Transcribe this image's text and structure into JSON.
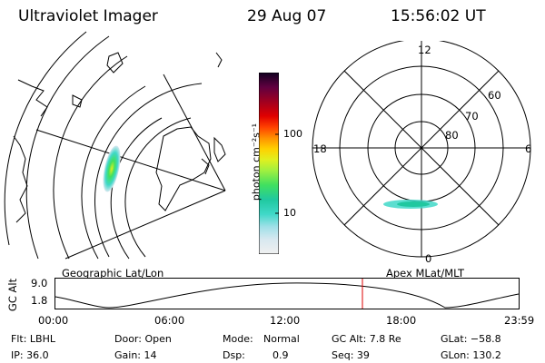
{
  "header": {
    "title": "Ultraviolet Imager",
    "date": "29 Aug 07",
    "time": "15:56:02 UT"
  },
  "colorbar": {
    "unit_label": "photon cm⁻²s⁻¹",
    "tick_100": "100",
    "tick_10": "10",
    "colors": [
      "#f0f0f0",
      "#d8e8f0",
      "#a0e0e8",
      "#40d8c8",
      "#20c8a0",
      "#40e060",
      "#a0f040",
      "#e0f020",
      "#ffd000",
      "#ff9000",
      "#ff4000",
      "#e00000",
      "#a00020",
      "#600040",
      "#300040",
      "#100020"
    ]
  },
  "geo_panel": {
    "label": "Geographic Lat/Lon"
  },
  "polar_panel": {
    "label": "Apex MLat/MLT",
    "mlt_labels": {
      "top": "12",
      "left": "18",
      "right": "6",
      "bottom": "0"
    },
    "lat_labels": [
      "60",
      "70",
      "80"
    ]
  },
  "altitude_plot": {
    "ylabel": "GC Alt",
    "ytick_top": "9.0",
    "ytick_bottom": "1.8",
    "xticks": [
      "00:00",
      "06:00",
      "12:00",
      "18:00",
      "23:59"
    ],
    "marker_color": "#dd0000"
  },
  "info": {
    "flt": "Flt: LBHL",
    "ip": "IP: 36.0",
    "door": "Door: Open",
    "gain": "Gain: 14",
    "mode_label": "Mode:",
    "mode_value": "Normal",
    "dsp_label": "Dsp:",
    "dsp_value": "0.9",
    "gcalt": "GC Alt: 7.8 Re",
    "seq": "Seq: 39",
    "glat": "GLat: −58.8",
    "glon": "GLon: 130.2"
  }
}
